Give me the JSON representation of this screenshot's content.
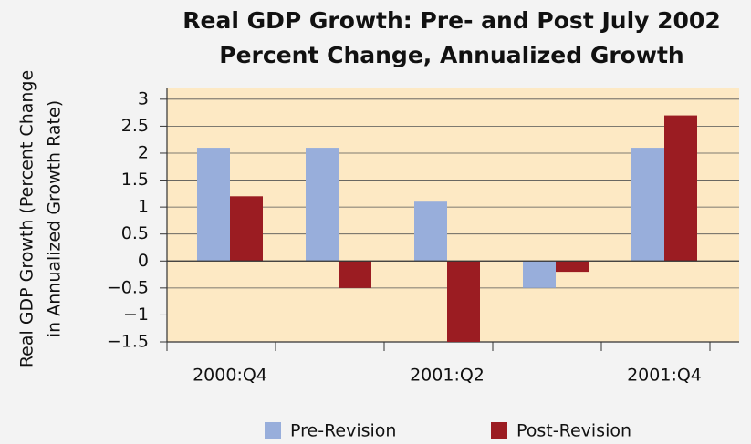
{
  "chart_data": {
    "type": "bar",
    "title": [
      "Real GDP Growth: Pre- and Post July 2002",
      "Percent Change, Annualized Growth"
    ],
    "ylabel": [
      "Real GDP Growth (Percent Change",
      "in Annualized Growth Rate)"
    ],
    "categories": [
      "2000:Q4",
      null,
      "2001:Q2",
      null,
      "2001:Q4"
    ],
    "series": [
      {
        "name": "Pre-Revision",
        "color": "#98aedb",
        "values": [
          2.1,
          2.1,
          1.1,
          -0.5,
          2.1
        ]
      },
      {
        "name": "Post-Revision",
        "color": "#9b1c22",
        "values": [
          1.2,
          -0.5,
          -1.5,
          -0.2,
          2.7
        ]
      }
    ],
    "ylim": [
      -1.5,
      3.2
    ],
    "yticks": [
      3,
      2.5,
      2,
      1.5,
      1,
      0.5,
      0,
      {
        "value": -0.5,
        "label": "−0.5"
      },
      {
        "value": -1,
        "label": "−1"
      },
      {
        "value": -1.5,
        "label": "−1.5"
      }
    ],
    "grid": true
  }
}
